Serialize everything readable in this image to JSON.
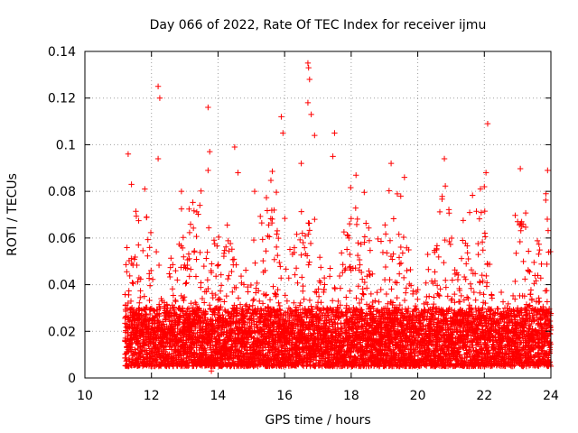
{
  "chart_data": {
    "type": "scatter",
    "title": "Day 066 of 2022, Rate Of TEC Index for receiver ijmu",
    "xlabel": "GPS time / hours",
    "ylabel": "ROTI / TECUs",
    "xlim": [
      10,
      24
    ],
    "ylim": [
      0,
      0.14
    ],
    "xticks": [
      "10",
      "12",
      "14",
      "16",
      "18",
      "20",
      "22",
      "24"
    ],
    "yticks": [
      "0",
      "0.02",
      "0.04",
      "0.06",
      "0.08",
      "0.1",
      "0.12",
      "0.14"
    ],
    "grid": true,
    "marker": "+",
    "color": "#ff0000",
    "series": [
      {
        "name": "ROTI",
        "x_range": [
          11.2,
          24.0
        ],
        "baseline_range": [
          0.005,
          0.03
        ],
        "notable_points": [
          {
            "x": 11.3,
            "y": 0.096
          },
          {
            "x": 11.4,
            "y": 0.083
          },
          {
            "x": 11.8,
            "y": 0.081
          },
          {
            "x": 12.2,
            "y": 0.125
          },
          {
            "x": 12.25,
            "y": 0.12
          },
          {
            "x": 12.2,
            "y": 0.094
          },
          {
            "x": 12.9,
            "y": 0.08
          },
          {
            "x": 13.7,
            "y": 0.116
          },
          {
            "x": 13.75,
            "y": 0.097
          },
          {
            "x": 13.7,
            "y": 0.089
          },
          {
            "x": 14.5,
            "y": 0.099
          },
          {
            "x": 14.6,
            "y": 0.088
          },
          {
            "x": 15.1,
            "y": 0.08
          },
          {
            "x": 15.9,
            "y": 0.112
          },
          {
            "x": 15.95,
            "y": 0.105
          },
          {
            "x": 16.5,
            "y": 0.092
          },
          {
            "x": 16.7,
            "y": 0.135
          },
          {
            "x": 16.72,
            "y": 0.133
          },
          {
            "x": 16.75,
            "y": 0.128
          },
          {
            "x": 16.7,
            "y": 0.118
          },
          {
            "x": 16.8,
            "y": 0.113
          },
          {
            "x": 16.9,
            "y": 0.104
          },
          {
            "x": 17.5,
            "y": 0.105
          },
          {
            "x": 17.45,
            "y": 0.095
          },
          {
            "x": 19.2,
            "y": 0.092
          },
          {
            "x": 19.6,
            "y": 0.086
          },
          {
            "x": 20.8,
            "y": 0.094
          },
          {
            "x": 22.1,
            "y": 0.109
          },
          {
            "x": 22.05,
            "y": 0.088
          },
          {
            "x": 22.0,
            "y": 0.082
          },
          {
            "x": 23.0,
            "y": 0.067
          },
          {
            "x": 23.9,
            "y": 0.089
          },
          {
            "x": 23.85,
            "y": 0.079
          },
          {
            "x": 13.8,
            "y": 0.003
          },
          {
            "x": 17.2,
            "y": 0.018
          },
          {
            "x": 21.2,
            "y": 0.016
          }
        ]
      }
    ]
  }
}
